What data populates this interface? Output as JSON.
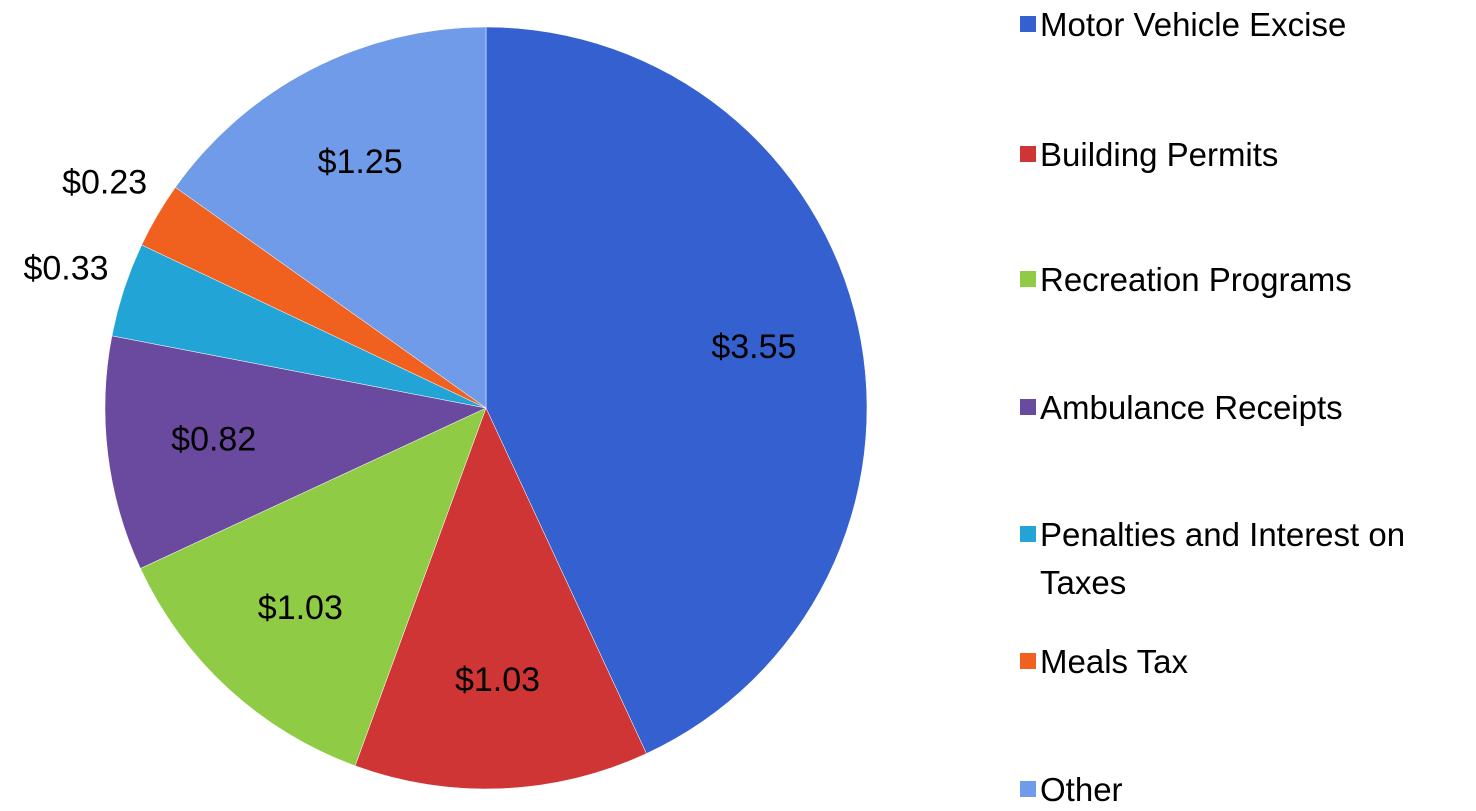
{
  "chart_data": {
    "type": "pie",
    "categories": [
      "Motor Vehicle Excise",
      "Building Permits",
      "Recreation Programs",
      "Ambulance Receipts",
      "Penalties and Interest on Taxes",
      "Meals Tax",
      "Other"
    ],
    "values": [
      3.55,
      1.03,
      1.03,
      0.82,
      0.33,
      0.23,
      1.25
    ],
    "value_labels": [
      "$3.55",
      "$1.03",
      "$1.03",
      "$0.82",
      "$0.33",
      "$0.23",
      "$1.25"
    ],
    "colors": [
      "#3561d0",
      "#cf3535",
      "#8fcb45",
      "#6a4a9f",
      "#23a4d6",
      "#f0601e",
      "#6f9be8"
    ],
    "legend": "right"
  }
}
